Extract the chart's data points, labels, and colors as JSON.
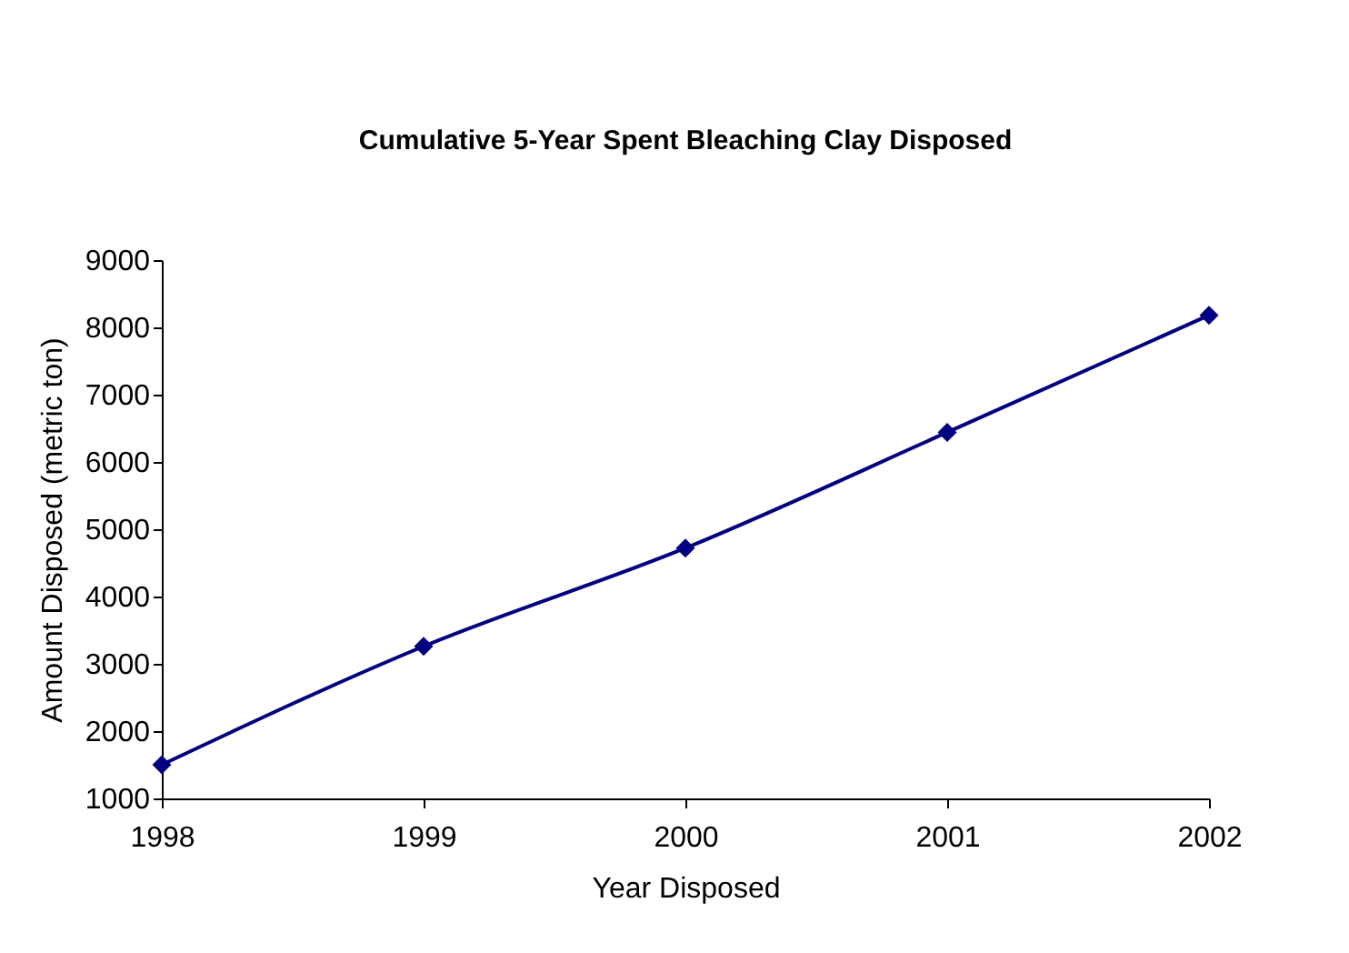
{
  "chart_data": {
    "type": "line",
    "title": "Cumulative 5-Year Spent Bleaching Clay Disposed",
    "xlabel": "Year Disposed",
    "ylabel": "Amount Disposed (metric ton)",
    "x": [
      1998,
      1999,
      2000,
      2001,
      2002
    ],
    "series": [
      {
        "color": "#000080",
        "values": [
          1500,
          3260,
          4720,
          6440,
          8180
        ]
      }
    ],
    "xlim": [
      1998,
      2002
    ],
    "xticks": [
      1998,
      1999,
      2000,
      2001,
      2002
    ],
    "ylim": [
      1000,
      9000
    ],
    "yticks": [
      1000,
      2000,
      3000,
      4000,
      5000,
      6000,
      7000,
      8000,
      9000
    ],
    "grid": false,
    "legend": false,
    "marker": "diamond",
    "line_style": "solid"
  }
}
